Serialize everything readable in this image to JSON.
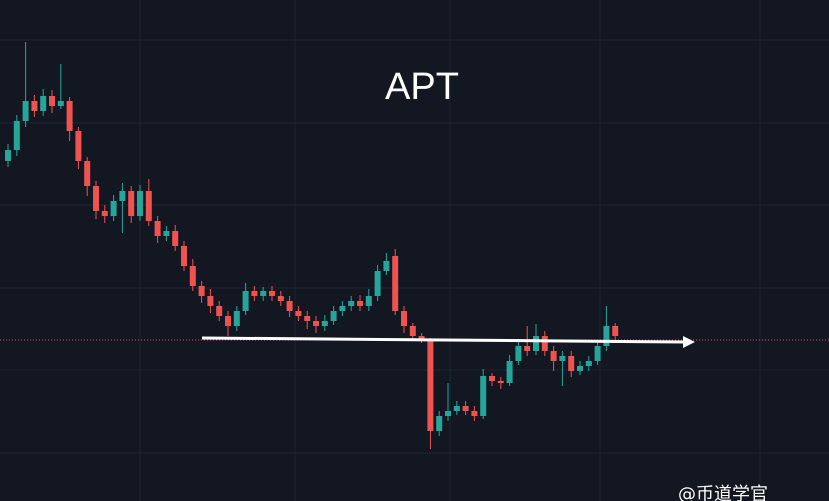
{
  "chart_data": {
    "type": "candlestick",
    "title": "APT",
    "watermark": "@币道学官",
    "ylim": [
      0,
      501
    ],
    "colors": {
      "up": "#26a69a",
      "down": "#ef5350"
    },
    "open": [
      340,
      351,
      380,
      400,
      390,
      405,
      395,
      400,
      370,
      340,
      315,
      290,
      285,
      300,
      310,
      285,
      310,
      280,
      265,
      270,
      255,
      235,
      215,
      205,
      195,
      185,
      175,
      190,
      210,
      205,
      210,
      205,
      200,
      190,
      185,
      180,
      175,
      180,
      190,
      195,
      200,
      195,
      205,
      230,
      245,
      190,
      175,
      165,
      160,
      70,
      85,
      90,
      95,
      90,
      85,
      125,
      120,
      118,
      140,
      155,
      150,
      165,
      150,
      140,
      145,
      130,
      135,
      140,
      155,
      175
    ],
    "close": [
      351,
      380,
      400,
      390,
      405,
      395,
      400,
      370,
      340,
      315,
      290,
      285,
      300,
      310,
      285,
      310,
      280,
      265,
      270,
      255,
      235,
      215,
      205,
      195,
      185,
      175,
      190,
      210,
      205,
      210,
      205,
      200,
      190,
      185,
      180,
      175,
      180,
      190,
      195,
      200,
      195,
      205,
      230,
      240,
      190,
      175,
      165,
      162,
      70,
      85,
      90,
      95,
      90,
      85,
      125,
      120,
      118,
      140,
      155,
      150,
      165,
      150,
      140,
      145,
      130,
      135,
      140,
      155,
      175,
      165
    ],
    "high": [
      357,
      386,
      459,
      406,
      412,
      411,
      437,
      404,
      374,
      344,
      320,
      296,
      306,
      318,
      315,
      316,
      322,
      285,
      275,
      276,
      260,
      242,
      220,
      212,
      200,
      190,
      195,
      218,
      215,
      214,
      215,
      210,
      205,
      195,
      190,
      185,
      186,
      195,
      200,
      205,
      206,
      212,
      236,
      248,
      252,
      195,
      178,
      168,
      163,
      90,
      118,
      100,
      100,
      95,
      132,
      128,
      124,
      146,
      162,
      175,
      177,
      170,
      155,
      150,
      150,
      140,
      145,
      160,
      195,
      178
    ],
    "low": [
      334,
      345,
      374,
      384,
      385,
      388,
      392,
      360,
      332,
      305,
      282,
      278,
      280,
      268,
      278,
      280,
      275,
      258,
      260,
      250,
      230,
      210,
      198,
      188,
      180,
      165,
      170,
      186,
      200,
      200,
      200,
      195,
      184,
      180,
      172,
      168,
      170,
      176,
      185,
      190,
      190,
      190,
      200,
      226,
      186,
      168,
      160,
      158,
      52,
      65,
      80,
      86,
      86,
      80,
      82,
      115,
      112,
      115,
      136,
      145,
      146,
      145,
      130,
      115,
      124,
      126,
      130,
      136,
      150,
      160
    ]
  }
}
